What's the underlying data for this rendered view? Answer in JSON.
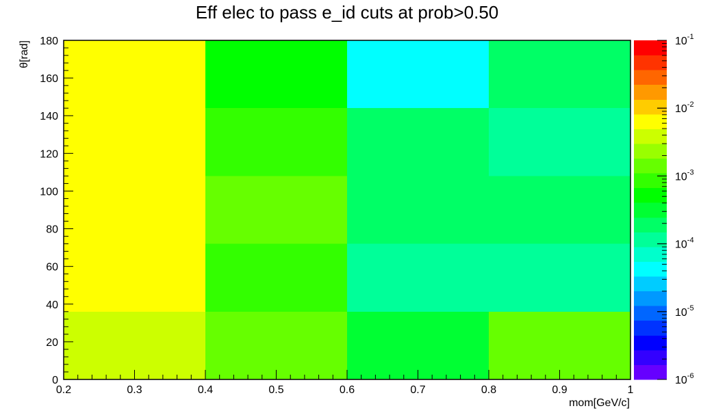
{
  "chart_data": {
    "type": "heatmap",
    "title": "Eff elec to pass e_id cuts at prob>0.50",
    "xlabel": "mom[GeV/c]",
    "ylabel": "θ[rad]",
    "xlim": [
      0.2,
      1.0
    ],
    "ylim": [
      0,
      180
    ],
    "x_bin_edges": [
      0.2,
      0.4,
      0.6,
      0.8,
      1.0
    ],
    "y_bin_edges": [
      0,
      36,
      72,
      108,
      144,
      180
    ],
    "x_tick_labels": [
      "0.2",
      "0.3",
      "0.4",
      "0.5",
      "0.6",
      "0.7",
      "0.8",
      "0.9",
      "1"
    ],
    "y_tick_labels": [
      "0",
      "20",
      "40",
      "60",
      "80",
      "100",
      "120",
      "140",
      "160",
      "180"
    ],
    "z_scale": "log",
    "zlim": [
      1e-06,
      0.1
    ],
    "palette_labels": [
      {
        "base": "10",
        "exp": "-1"
      },
      {
        "base": "10",
        "exp": "-2"
      },
      {
        "base": "10",
        "exp": "-3"
      },
      {
        "base": "10",
        "exp": "-4"
      },
      {
        "base": "10",
        "exp": "-5"
      },
      {
        "base": "10",
        "exp": "-6"
      }
    ],
    "palette_colors": [
      "#6600ff",
      "#3300ff",
      "#0000ff",
      "#0033ff",
      "#0066ff",
      "#0099ff",
      "#00ccff",
      "#00ffff",
      "#00ffcc",
      "#00ff99",
      "#00ff66",
      "#00ff33",
      "#00ff00",
      "#33ff00",
      "#66ff00",
      "#99ff00",
      "#ccff00",
      "#ffff00",
      "#ffcc00",
      "#ff9900",
      "#ff6600",
      "#ff3300",
      "#ff0000"
    ],
    "cells": [
      [
        0.0045,
        0.0012,
        0.00025,
        0.0012
      ],
      [
        0.008,
        0.0009,
        0.00011,
        0.00011
      ],
      [
        0.008,
        0.0012,
        0.00018,
        0.00018
      ],
      [
        0.008,
        0.0009,
        0.00018,
        0.00011
      ],
      [
        0.008,
        0.00045,
        4.5e-05,
        0.00018
      ]
    ]
  }
}
